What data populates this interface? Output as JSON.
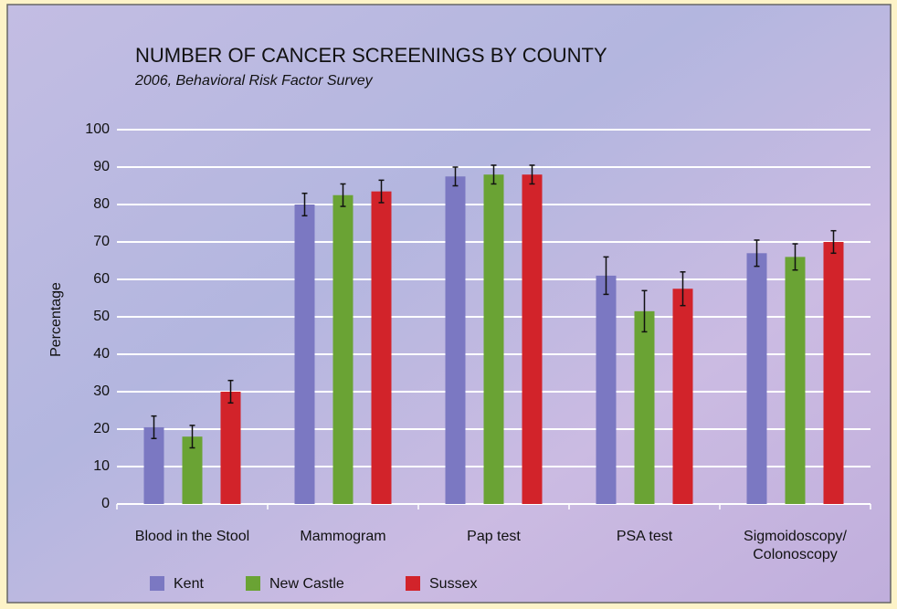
{
  "chart_data": {
    "type": "bar",
    "title": "NUMBER OF CANCER SCREENINGS BY COUNTY",
    "subtitle": "2006, Behavioral Risk Factor Survey",
    "y_label": "Percentage",
    "categories": [
      "Blood in the Stool",
      "Mammogram",
      "Pap test",
      "PSA test",
      "Sigmoidoscopy/ Colonoscopy"
    ],
    "series": [
      {
        "name": "Kent",
        "color": "#7b78c2",
        "values": [
          20.5,
          80,
          87.5,
          61,
          67
        ],
        "errors": [
          3,
          3,
          2.5,
          5,
          3.5
        ]
      },
      {
        "name": "New Castle",
        "color": "#6aa334",
        "values": [
          18,
          82.5,
          88,
          51.5,
          66
        ],
        "errors": [
          3,
          3,
          2.5,
          5.5,
          3.5
        ]
      },
      {
        "name": "Sussex",
        "color": "#d2232a",
        "values": [
          30,
          83.5,
          88,
          57.5,
          70
        ],
        "errors": [
          3,
          3,
          2.5,
          4.5,
          3
        ]
      }
    ],
    "ylim": [
      0,
      100
    ],
    "yticks": [
      0,
      10,
      20,
      30,
      40,
      50,
      60,
      70,
      80,
      90,
      100
    ],
    "grid": true,
    "legend": "bottom"
  }
}
